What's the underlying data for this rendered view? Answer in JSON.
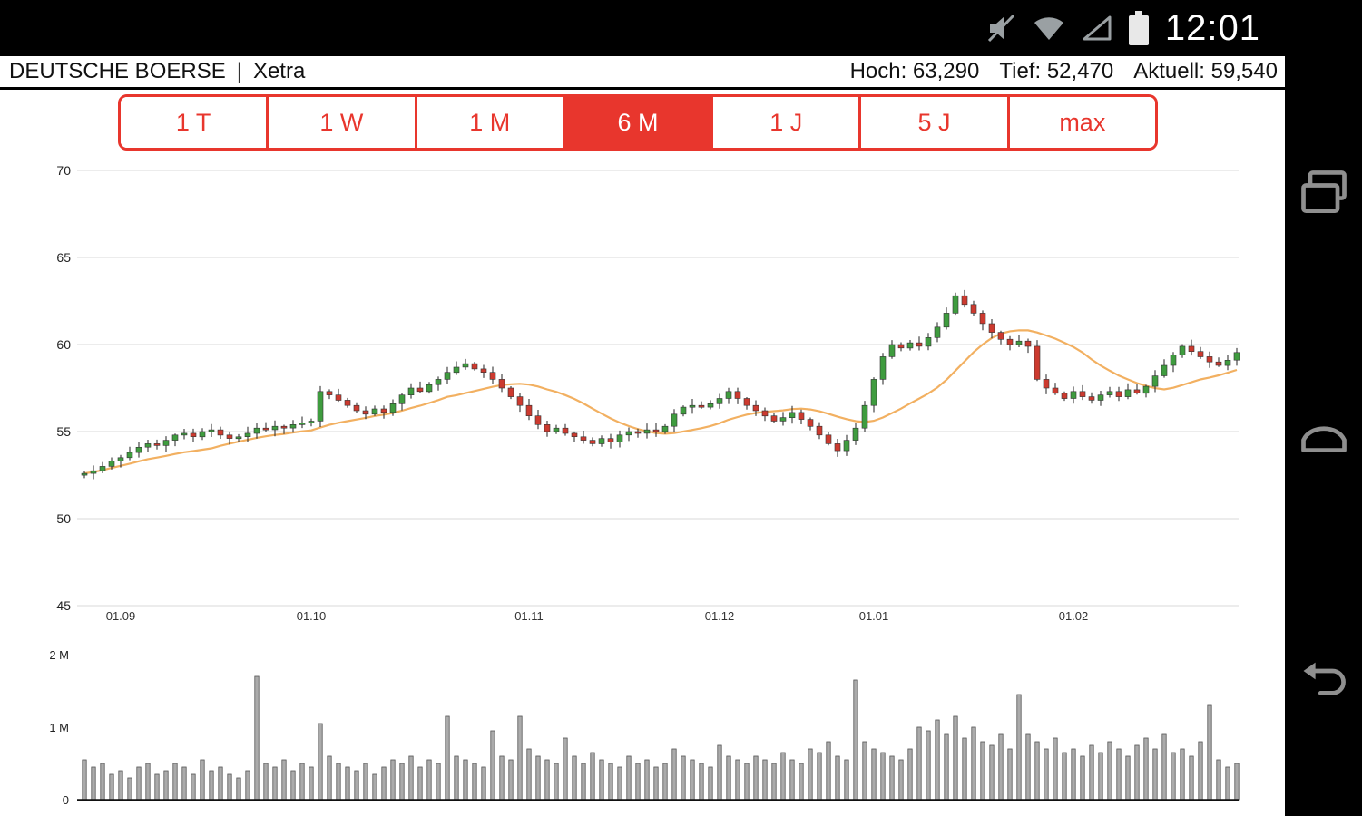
{
  "status_bar": {
    "time": "12:01",
    "icons": [
      "mute-icon",
      "wifi-icon",
      "signal-icon",
      "battery-icon"
    ]
  },
  "nav_bar": {
    "buttons": [
      "recents",
      "home",
      "back"
    ],
    "icons": [
      "recents-icon",
      "home-icon",
      "back-icon"
    ]
  },
  "header": {
    "title": "DEUTSCHE BOERSE",
    "separator": "|",
    "subtitle": "Xetra",
    "stats": [
      {
        "label": "Hoch:",
        "value": "63,290"
      },
      {
        "label": "Tief:",
        "value": "52,470"
      },
      {
        "label": "Aktuell:",
        "value": "59,540"
      }
    ]
  },
  "range_buttons": {
    "options": [
      "1 T",
      "1 W",
      "1 M",
      "6 M",
      "1 J",
      "5 J",
      "max"
    ],
    "active": "6 M",
    "accent": "#e8362d"
  },
  "chart_data": {
    "type": "candlestick+volume",
    "title": "DEUTSCHE BOERSE Xetra 6M",
    "y_axis": {
      "min": 45,
      "max": 70,
      "ticks": [
        70,
        65,
        60,
        55,
        50,
        45
      ]
    },
    "x_ticks": [
      {
        "label": "01.09",
        "day": 4
      },
      {
        "label": "01.10",
        "day": 25
      },
      {
        "label": "01.11",
        "day": 49
      },
      {
        "label": "01.12",
        "day": 70
      },
      {
        "label": "01.01",
        "day": 87
      },
      {
        "label": "01.02",
        "day": 109
      }
    ],
    "closes": [
      52.6,
      52.75,
      53.0,
      53.3,
      53.5,
      53.8,
      54.1,
      54.3,
      54.2,
      54.5,
      54.8,
      54.9,
      54.7,
      55.0,
      55.1,
      54.8,
      54.6,
      54.7,
      54.9,
      55.2,
      55.1,
      55.3,
      55.2,
      55.4,
      55.5,
      55.6,
      57.3,
      57.1,
      56.8,
      56.5,
      56.2,
      56.0,
      56.3,
      56.1,
      56.6,
      57.1,
      57.5,
      57.3,
      57.7,
      58.0,
      58.4,
      58.7,
      58.9,
      58.6,
      58.4,
      58.0,
      57.5,
      57.0,
      56.5,
      55.9,
      55.4,
      55.0,
      55.2,
      54.9,
      54.7,
      54.5,
      54.3,
      54.6,
      54.4,
      54.8,
      55.0,
      54.9,
      55.1,
      55.0,
      55.3,
      56.0,
      56.4,
      56.5,
      56.4,
      56.6,
      56.9,
      57.3,
      56.9,
      56.5,
      56.2,
      55.9,
      55.6,
      55.8,
      56.1,
      55.7,
      55.3,
      54.8,
      54.3,
      53.9,
      54.5,
      55.2,
      56.5,
      58.0,
      59.3,
      60.0,
      59.8,
      60.1,
      59.9,
      60.4,
      61.0,
      61.8,
      62.8,
      62.3,
      61.8,
      61.2,
      60.7,
      60.3,
      60.0,
      60.2,
      59.9,
      58.0,
      57.5,
      57.2,
      56.9,
      57.3,
      57.0,
      56.8,
      57.1,
      57.3,
      57.0,
      57.4,
      57.2,
      57.6,
      58.2,
      58.8,
      59.4,
      59.9,
      59.6,
      59.3,
      59.0,
      58.8,
      59.1,
      59.54
    ],
    "volumes_m": [
      0.55,
      0.45,
      0.5,
      0.35,
      0.4,
      0.3,
      0.45,
      0.5,
      0.35,
      0.4,
      0.5,
      0.45,
      0.35,
      0.55,
      0.4,
      0.45,
      0.35,
      0.3,
      0.4,
      1.7,
      0.5,
      0.45,
      0.55,
      0.4,
      0.5,
      0.45,
      1.05,
      0.6,
      0.5,
      0.45,
      0.4,
      0.5,
      0.35,
      0.45,
      0.55,
      0.5,
      0.6,
      0.45,
      0.55,
      0.5,
      1.15,
      0.6,
      0.55,
      0.5,
      0.45,
      0.95,
      0.6,
      0.55,
      1.15,
      0.7,
      0.6,
      0.55,
      0.5,
      0.85,
      0.6,
      0.5,
      0.65,
      0.55,
      0.5,
      0.45,
      0.6,
      0.5,
      0.55,
      0.45,
      0.5,
      0.7,
      0.6,
      0.55,
      0.5,
      0.45,
      0.75,
      0.6,
      0.55,
      0.5,
      0.6,
      0.55,
      0.5,
      0.65,
      0.55,
      0.5,
      0.7,
      0.65,
      0.8,
      0.6,
      0.55,
      1.65,
      0.8,
      0.7,
      0.65,
      0.6,
      0.55,
      0.7,
      1.0,
      0.95,
      1.1,
      0.9,
      1.15,
      0.85,
      1.0,
      0.8,
      0.75,
      0.9,
      0.7,
      1.45,
      0.9,
      0.8,
      0.7,
      0.85,
      0.65,
      0.7,
      0.6,
      0.75,
      0.65,
      0.8,
      0.7,
      0.6,
      0.75,
      0.85,
      0.7,
      0.9,
      0.65,
      0.7,
      0.6,
      0.8,
      1.3,
      0.55,
      0.45,
      0.5
    ],
    "volume_axis": {
      "ticks": [
        {
          "label": "2 M",
          "value": 2
        },
        {
          "label": "1 M",
          "value": 1
        },
        {
          "label": "0",
          "value": 0
        }
      ],
      "max_m": 2
    },
    "ma_window": 15,
    "colors": {
      "up": "#3f9c3f",
      "down": "#cc3a2f",
      "ma": "#f2b061",
      "wick": "#222222",
      "volume": "#ababab",
      "grid": "#d8d8d8"
    },
    "stats": {
      "high": "63,290",
      "low": "52,470",
      "current": "59,540"
    }
  }
}
